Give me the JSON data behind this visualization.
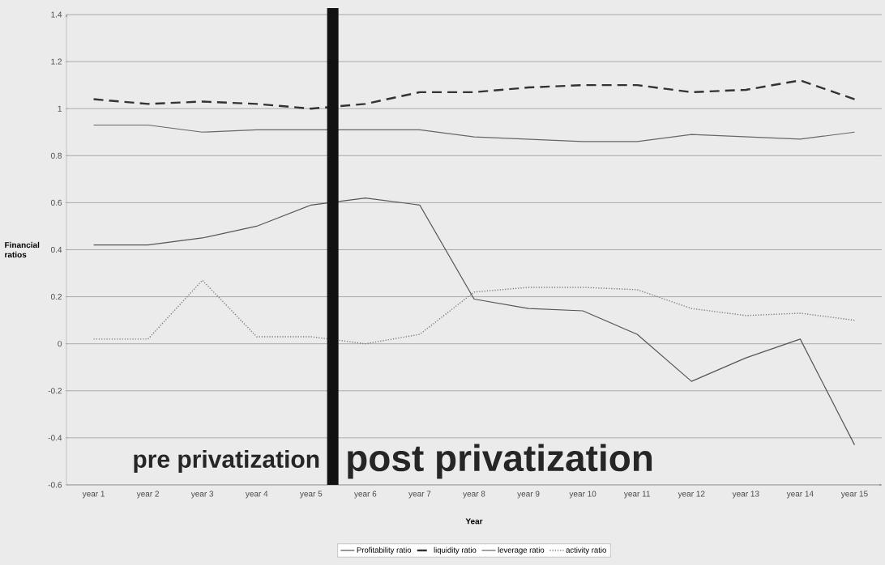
{
  "chart_data": {
    "type": "line",
    "xlabel": "Year",
    "ylabel": "Financial ratios",
    "categories": [
      "year 1",
      "year 2",
      "year 3",
      "year 4",
      "year 5",
      "year 6",
      "year 7",
      "year 8",
      "year 9",
      "year 10",
      "year 11",
      "year 12",
      "year 13",
      "year 14",
      "year 15"
    ],
    "ylim": [
      -0.6,
      1.4
    ],
    "yticks": [
      -0.6,
      -0.4,
      -0.2,
      0,
      0.2,
      0.4,
      0.6,
      0.8,
      1,
      1.2,
      1.4
    ],
    "grid": "y",
    "legend": "bottom",
    "marker": "none",
    "series": [
      {
        "name": "Profitability ratio",
        "color": "#555555",
        "line_style": "solid",
        "values": [
          0.42,
          0.42,
          0.45,
          0.5,
          0.59,
          0.62,
          0.59,
          0.19,
          0.15,
          0.14,
          0.04,
          -0.16,
          -0.06,
          0.02,
          -0.43
        ]
      },
      {
        "name": "liquidity ratio",
        "color": "#333333",
        "line_style": "dashed",
        "values": [
          1.04,
          1.02,
          1.03,
          1.02,
          1.0,
          1.02,
          1.07,
          1.07,
          1.09,
          1.1,
          1.1,
          1.07,
          1.08,
          1.12,
          1.04
        ]
      },
      {
        "name": "leverage ratio",
        "color": "#666666",
        "line_style": "solid",
        "values": [
          0.93,
          0.93,
          0.9,
          0.91,
          0.91,
          0.91,
          0.91,
          0.88,
          0.87,
          0.86,
          0.86,
          0.89,
          0.88,
          0.87,
          0.9
        ]
      },
      {
        "name": "activity ratio",
        "color": "#777777",
        "line_style": "dotted",
        "values": [
          0.02,
          0.02,
          0.27,
          0.03,
          0.03,
          0.0,
          0.04,
          0.22,
          0.24,
          0.24,
          0.23,
          0.15,
          0.12,
          0.13,
          0.1
        ]
      }
    ],
    "annotations": [
      "pre privatization",
      "post privatization"
    ]
  }
}
